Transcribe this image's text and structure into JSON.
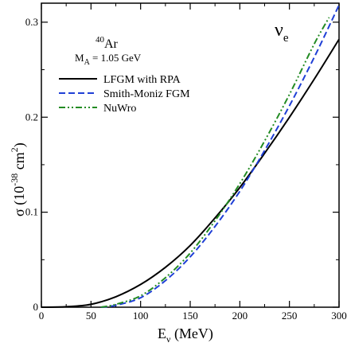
{
  "chart_data": {
    "type": "line",
    "xlabel": {
      "main": "E",
      "sub": "ν",
      "rest": " (MeV)"
    },
    "ylabel": {
      "main": "σ (10",
      "sup1": "-38",
      "mid": " cm",
      "sup2": "2",
      "end": ")"
    },
    "xlim": [
      0,
      300
    ],
    "ylim": [
      0,
      0.32
    ],
    "xticks": [
      0,
      50,
      100,
      150,
      200,
      250,
      300
    ],
    "yticks": [
      0,
      0.1,
      0.2,
      0.3
    ],
    "grid": false,
    "legend_position": "top-left",
    "annotations": {
      "nucleus_sup": "40",
      "nucleus": "Ar",
      "ma_main": "M",
      "ma_sub": "A",
      "ma_rest": " = 1.05 GeV",
      "nu_main": "ν",
      "nu_sub": "e"
    },
    "series": [
      {
        "name": "LFGM with RPA",
        "color": "#000000",
        "dash": "solid",
        "x": [
          0,
          25,
          50,
          75,
          100,
          125,
          150,
          175,
          200,
          225,
          250,
          275,
          300
        ],
        "y": [
          0.0,
          0.0005,
          0.003,
          0.011,
          0.024,
          0.042,
          0.065,
          0.094,
          0.126,
          0.162,
          0.2,
          0.24,
          0.282
        ]
      },
      {
        "name": "Smith-Moniz FGM",
        "color": "#1f3fd6",
        "dash": "dashed",
        "x": [
          60,
          75,
          100,
          125,
          150,
          175,
          200,
          225,
          250,
          275,
          300
        ],
        "y": [
          0.0,
          0.002,
          0.01,
          0.028,
          0.053,
          0.085,
          0.122,
          0.165,
          0.212,
          0.263,
          0.318
        ]
      },
      {
        "name": "NuWro",
        "color": "#228b22",
        "dash": "dashdot",
        "x": [
          60,
          75,
          100,
          125,
          150,
          175,
          200,
          225,
          250,
          275,
          290
        ],
        "y": [
          0.0,
          0.003,
          0.012,
          0.031,
          0.057,
          0.091,
          0.13,
          0.175,
          0.224,
          0.277,
          0.305
        ]
      }
    ]
  }
}
